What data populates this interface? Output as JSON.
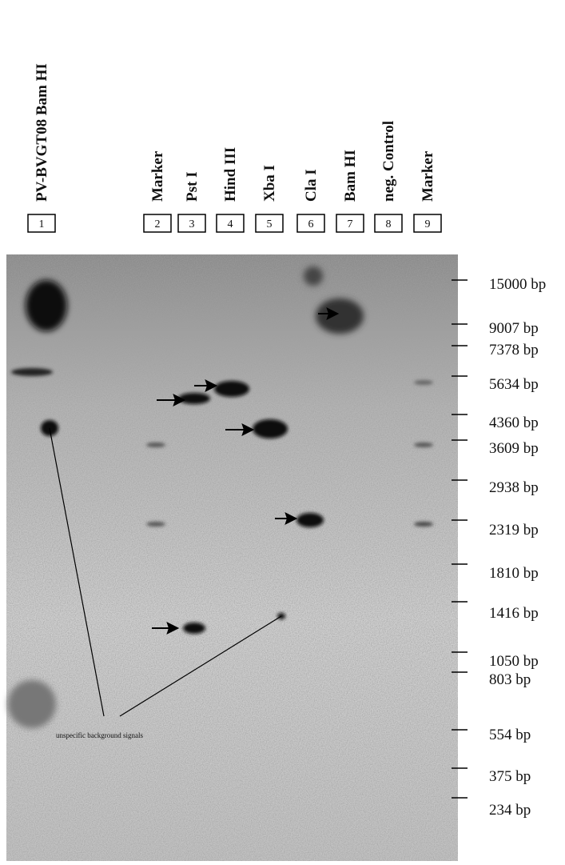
{
  "lanes": [
    {
      "number": "1",
      "label": "PV-BVGT08 Bam HI"
    },
    {
      "number": "2",
      "label": "Marker"
    },
    {
      "number": "3",
      "label": "Pst I"
    },
    {
      "number": "4",
      "label": "Hind III"
    },
    {
      "number": "5",
      "label": "Xba I"
    },
    {
      "number": "6",
      "label": "Cla I"
    },
    {
      "number": "7",
      "label": "Bam HI"
    },
    {
      "number": "8",
      "label": "neg. Control"
    },
    {
      "number": "9",
      "label": "Marker"
    }
  ],
  "size_markers": [
    "15000 bp",
    "9007 bp",
    "7378 bp",
    "5634 bp",
    "4360 bp",
    "3609 bp",
    "2938 bp",
    "2319 bp",
    "1810 bp",
    "1416 bp",
    "1050 bp",
    "803 bp",
    "554 bp",
    "375 bp",
    "234 bp"
  ],
  "annotation": "unspecific background signals"
}
